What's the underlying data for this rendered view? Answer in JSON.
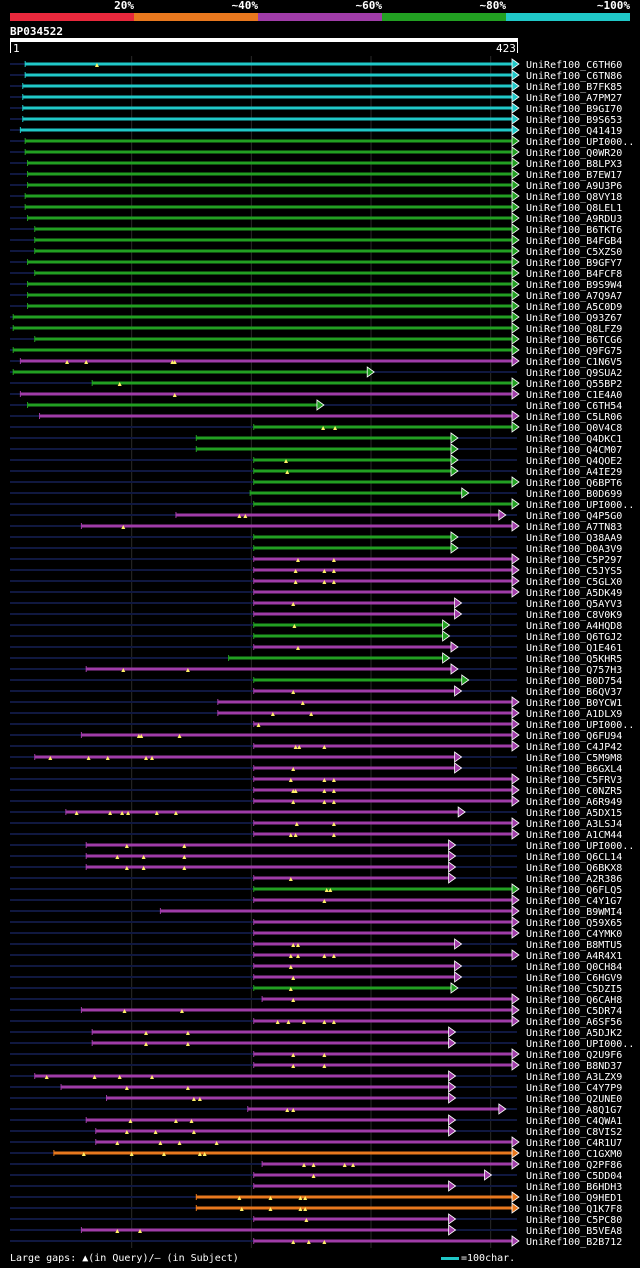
{
  "scale": {
    "labels": [
      "20%",
      "~40%",
      "~60%",
      "~80%",
      "~100%"
    ],
    "colors": [
      "#e8283c",
      "#e8781e",
      "#a03ca8",
      "#22a022",
      "#20c8c8"
    ]
  },
  "query": {
    "id": "BP034522",
    "start_label": "1",
    "end_label": "423",
    "length": 423
  },
  "footer": {
    "large_gaps": "Large gaps: ▲(in Query)/– (in Subject)",
    "legend": "=100char."
  },
  "hits": [
    {
      "name": "UniRef100_C6TH60",
      "color": "#20c8c8",
      "qs": 12,
      "qe": 423,
      "tail": true,
      "marks": [
        72
      ]
    },
    {
      "name": "UniRef100_C6TN86",
      "color": "#20c8c8",
      "qs": 12,
      "qe": 423,
      "tail": true,
      "marks": []
    },
    {
      "name": "UniRef100_B7FK85",
      "color": "#20c8c8",
      "qs": 10,
      "qe": 423,
      "tail": true,
      "marks": []
    },
    {
      "name": "UniRef100_A7PM27",
      "color": "#20c8c8",
      "qs": 10,
      "qe": 423,
      "tail": true,
      "marks": []
    },
    {
      "name": "UniRef100_B9GI70",
      "color": "#20c8c8",
      "qs": 10,
      "qe": 423,
      "tail": true,
      "marks": []
    },
    {
      "name": "UniRef100_B9S653",
      "color": "#20c8c8",
      "qs": 10,
      "qe": 423,
      "tail": true,
      "marks": []
    },
    {
      "name": "UniRef100_Q41419",
      "color": "#20c8c8",
      "qs": 8,
      "qe": 423,
      "tail": true,
      "marks": []
    },
    {
      "name": "UniRef100_UPI000..",
      "color": "#22a022",
      "qs": 12,
      "qe": 423,
      "tail": true,
      "marks": []
    },
    {
      "name": "UniRef100_Q0WR20",
      "color": "#22a022",
      "qs": 12,
      "qe": 423,
      "tail": true,
      "marks": []
    },
    {
      "name": "UniRef100_B8LPX3",
      "color": "#22a022",
      "qs": 14,
      "qe": 423,
      "tail": true,
      "marks": []
    },
    {
      "name": "UniRef100_B7EW17",
      "color": "#22a022",
      "qs": 14,
      "qe": 423,
      "tail": true,
      "marks": []
    },
    {
      "name": "UniRef100_A9U3P6",
      "color": "#22a022",
      "qs": 14,
      "qe": 423,
      "tail": true,
      "marks": []
    },
    {
      "name": "UniRef100_Q8VY18",
      "color": "#22a022",
      "qs": 12,
      "qe": 423,
      "tail": true,
      "marks": []
    },
    {
      "name": "UniRef100_Q8LEL1",
      "color": "#22a022",
      "qs": 12,
      "qe": 423,
      "tail": true,
      "marks": []
    },
    {
      "name": "UniRef100_A9RDU3",
      "color": "#22a022",
      "qs": 14,
      "qe": 423,
      "tail": true,
      "marks": []
    },
    {
      "name": "UniRef100_B6TKT6",
      "color": "#22a022",
      "qs": 20,
      "qe": 423,
      "tail": true,
      "marks": []
    },
    {
      "name": "UniRef100_B4FGB4",
      "color": "#22a022",
      "qs": 20,
      "qe": 423,
      "tail": true,
      "marks": []
    },
    {
      "name": "UniRef100_C5XZS0",
      "color": "#22a022",
      "qs": 20,
      "qe": 423,
      "tail": true,
      "marks": []
    },
    {
      "name": "UniRef100_B9GFY7",
      "color": "#22a022",
      "qs": 14,
      "qe": 423,
      "tail": true,
      "marks": []
    },
    {
      "name": "UniRef100_B4FCF8",
      "color": "#22a022",
      "qs": 20,
      "qe": 423,
      "tail": true,
      "marks": []
    },
    {
      "name": "UniRef100_B9S9W4",
      "color": "#22a022",
      "qs": 14,
      "qe": 423,
      "tail": true,
      "marks": []
    },
    {
      "name": "UniRef100_A7Q9A7",
      "color": "#22a022",
      "qs": 14,
      "qe": 423,
      "tail": true,
      "marks": []
    },
    {
      "name": "UniRef100_A5C0D9",
      "color": "#22a022",
      "qs": 14,
      "qe": 423,
      "tail": true,
      "marks": []
    },
    {
      "name": "UniRef100_Q93Z67",
      "color": "#22a022",
      "qs": 2,
      "qe": 423,
      "tail": true,
      "marks": []
    },
    {
      "name": "UniRef100_Q8LFZ9",
      "color": "#22a022",
      "qs": 2,
      "qe": 423,
      "tail": true,
      "marks": []
    },
    {
      "name": "UniRef100_B6TCG6",
      "color": "#22a022",
      "qs": 20,
      "qe": 423,
      "tail": true,
      "marks": []
    },
    {
      "name": "UniRef100_Q9FG75",
      "color": "#22a022",
      "qs": 2,
      "qe": 423,
      "tail": true,
      "marks": []
    },
    {
      "name": "UniRef100_C1N6V5",
      "color": "#a03ca8",
      "qs": 8,
      "qe": 423,
      "tail": true,
      "marks": [
        47,
        63,
        135,
        137
      ]
    },
    {
      "name": "UniRef100_Q9SUA2",
      "color": "#22a022",
      "qs": 2,
      "qe": 302,
      "tail": false,
      "marks": []
    },
    {
      "name": "UniRef100_Q55BP2",
      "color": "#22a022",
      "qs": 68,
      "qe": 423,
      "tail": true,
      "marks": [
        91
      ]
    },
    {
      "name": "UniRef100_C1E4A0",
      "color": "#a03ca8",
      "qs": 8,
      "qe": 423,
      "tail": true,
      "marks": [
        137
      ]
    },
    {
      "name": "UniRef100_C6TH54",
      "color": "#22a022",
      "qs": 14,
      "qe": 260,
      "tail": false,
      "marks": []
    },
    {
      "name": "UniRef100_C5LR06",
      "color": "#a03ca8",
      "qs": 24,
      "qe": 423,
      "tail": true,
      "marks": []
    },
    {
      "name": "UniRef100_Q0V4C8",
      "color": "#22a022",
      "qs": 203,
      "qe": 423,
      "tail": true,
      "marks": [
        261,
        271
      ]
    },
    {
      "name": "UniRef100_Q4DKC1",
      "color": "#22a022",
      "qs": 155,
      "qe": 372,
      "tail": false,
      "marks": []
    },
    {
      "name": "UniRef100_Q4CM07",
      "color": "#22a022",
      "qs": 155,
      "qe": 372,
      "tail": false,
      "marks": []
    },
    {
      "name": "UniRef100_Q4QOE2",
      "color": "#22a022",
      "qs": 203,
      "qe": 372,
      "tail": false,
      "marks": [
        230
      ]
    },
    {
      "name": "UniRef100_A4IE29",
      "color": "#22a022",
      "qs": 203,
      "qe": 372,
      "tail": false,
      "marks": [
        231
      ]
    },
    {
      "name": "UniRef100_Q6BPT6",
      "color": "#22a022",
      "qs": 203,
      "qe": 423,
      "tail": true,
      "marks": []
    },
    {
      "name": "UniRef100_B0D699",
      "color": "#22a022",
      "qs": 200,
      "qe": 381,
      "tail": false,
      "marks": []
    },
    {
      "name": "UniRef100_UPI000..",
      "color": "#22a022",
      "qs": 203,
      "qe": 423,
      "tail": true,
      "marks": []
    },
    {
      "name": "UniRef100_Q4P5G0",
      "color": "#a03ca8",
      "qs": 138,
      "qe": 412,
      "tail": false,
      "marks": [
        191,
        196
      ]
    },
    {
      "name": "UniRef100_A7TN83",
      "color": "#a03ca8",
      "qs": 59,
      "qe": 423,
      "tail": true,
      "marks": [
        94
      ]
    },
    {
      "name": "UniRef100_Q38AA9",
      "color": "#22a022",
      "qs": 203,
      "qe": 372,
      "tail": false,
      "marks": []
    },
    {
      "name": "UniRef100_D0A3V9",
      "color": "#22a022",
      "qs": 203,
      "qe": 372,
      "tail": false,
      "marks": []
    },
    {
      "name": "UniRef100_C5P297",
      "color": "#a03ca8",
      "qs": 203,
      "qe": 423,
      "tail": true,
      "marks": [
        240,
        270
      ]
    },
    {
      "name": "UniRef100_C5JYS5",
      "color": "#a03ca8",
      "qs": 203,
      "qe": 423,
      "tail": true,
      "marks": [
        238,
        262,
        270
      ]
    },
    {
      "name": "UniRef100_C5GLX0",
      "color": "#a03ca8",
      "qs": 203,
      "qe": 423,
      "tail": true,
      "marks": [
        238,
        262,
        270
      ]
    },
    {
      "name": "UniRef100_A5DK49",
      "color": "#a03ca8",
      "qs": 203,
      "qe": 423,
      "tail": true,
      "marks": []
    },
    {
      "name": "UniRef100_Q5AYV3",
      "color": "#a03ca8",
      "qs": 203,
      "qe": 375,
      "tail": false,
      "marks": [
        236
      ]
    },
    {
      "name": "UniRef100_C8V0K9",
      "color": "#a03ca8",
      "qs": 203,
      "qe": 375,
      "tail": false,
      "marks": []
    },
    {
      "name": "UniRef100_A4HQD8",
      "color": "#22a022",
      "qs": 203,
      "qe": 365,
      "tail": false,
      "marks": [
        237
      ]
    },
    {
      "name": "UniRef100_Q6TGJ2",
      "color": "#22a022",
      "qs": 203,
      "qe": 365,
      "tail": false,
      "marks": []
    },
    {
      "name": "UniRef100_Q1E461",
      "color": "#a03ca8",
      "qs": 203,
      "qe": 372,
      "tail": false,
      "marks": [
        240
      ]
    },
    {
      "name": "UniRef100_Q5KHR5",
      "color": "#22a022",
      "qs": 182,
      "qe": 365,
      "tail": false,
      "marks": []
    },
    {
      "name": "UniRef100_Q757H3",
      "color": "#a03ca8",
      "qs": 63,
      "qe": 372,
      "tail": false,
      "marks": [
        94,
        148
      ]
    },
    {
      "name": "UniRef100_B0D754",
      "color": "#22a022",
      "qs": 203,
      "qe": 381,
      "tail": false,
      "marks": []
    },
    {
      "name": "UniRef100_B6QV37",
      "color": "#a03ca8",
      "qs": 203,
      "qe": 375,
      "tail": false,
      "marks": [
        236
      ]
    },
    {
      "name": "UniRef100_B0YCW1",
      "color": "#a03ca8",
      "qs": 173,
      "qe": 423,
      "tail": true,
      "marks": [
        244
      ]
    },
    {
      "name": "UniRef100_A1DLX9",
      "color": "#a03ca8",
      "qs": 173,
      "qe": 423,
      "tail": true,
      "marks": [
        219,
        251
      ]
    },
    {
      "name": "UniRef100_UPI000..",
      "color": "#a03ca8",
      "qs": 203,
      "qe": 423,
      "tail": true,
      "marks": [
        207
      ]
    },
    {
      "name": "UniRef100_Q6FU94",
      "color": "#a03ca8",
      "qs": 59,
      "qe": 423,
      "tail": true,
      "marks": [
        107,
        109,
        141
      ]
    },
    {
      "name": "UniRef100_C4JP42",
      "color": "#a03ca8",
      "qs": 203,
      "qe": 423,
      "tail": true,
      "marks": [
        238,
        241,
        262
      ]
    },
    {
      "name": "UniRef100_C5M9M8",
      "color": "#a03ca8",
      "qs": 20,
      "qe": 375,
      "tail": false,
      "marks": [
        33,
        65,
        81,
        113,
        118
      ]
    },
    {
      "name": "UniRef100_B6GXL4",
      "color": "#a03ca8",
      "qs": 203,
      "qe": 375,
      "tail": false,
      "marks": [
        236
      ]
    },
    {
      "name": "UniRef100_C5FRV3",
      "color": "#a03ca8",
      "qs": 203,
      "qe": 423,
      "tail": true,
      "marks": [
        234,
        262,
        270
      ]
    },
    {
      "name": "UniRef100_C0NZR5",
      "color": "#a03ca8",
      "qs": 203,
      "qe": 423,
      "tail": true,
      "marks": [
        236,
        238,
        262,
        270
      ]
    },
    {
      "name": "UniRef100_A6R949",
      "color": "#a03ca8",
      "qs": 203,
      "qe": 423,
      "tail": true,
      "marks": [
        236,
        262,
        270
      ]
    },
    {
      "name": "UniRef100_A5DX15",
      "color": "#a03ca8",
      "qs": 46,
      "qe": 378,
      "tail": false,
      "marks": [
        55,
        83,
        93,
        98,
        122,
        138
      ]
    },
    {
      "name": "UniRef100_A3LSJ4",
      "color": "#a03ca8",
      "qs": 203,
      "qe": 423,
      "tail": true,
      "marks": [
        239,
        270
      ]
    },
    {
      "name": "UniRef100_A1CM44",
      "color": "#a03ca8",
      "qs": 203,
      "qe": 423,
      "tail": true,
      "marks": [
        234,
        238,
        270
      ]
    },
    {
      "name": "UniRef100_UPI000..",
      "color": "#a03ca8",
      "qs": 63,
      "qe": 370,
      "tail": false,
      "marks": [
        97,
        145
      ]
    },
    {
      "name": "UniRef100_Q6CL14",
      "color": "#a03ca8",
      "qs": 63,
      "qe": 370,
      "tail": false,
      "marks": [
        89,
        111,
        145
      ]
    },
    {
      "name": "UniRef100_Q6BKX8",
      "color": "#a03ca8",
      "qs": 63,
      "qe": 370,
      "tail": false,
      "marks": [
        97,
        111,
        145
      ]
    },
    {
      "name": "UniRef100_A2R386",
      "color": "#a03ca8",
      "qs": 203,
      "qe": 370,
      "tail": false,
      "marks": [
        234
      ]
    },
    {
      "name": "UniRef100_Q6FLQ5",
      "color": "#22a022",
      "qs": 203,
      "qe": 423,
      "tail": true,
      "marks": [
        264,
        267
      ]
    },
    {
      "name": "UniRef100_C4Y1G7",
      "color": "#a03ca8",
      "qs": 203,
      "qe": 423,
      "tail": true,
      "marks": [
        262
      ]
    },
    {
      "name": "UniRef100_B9WMI4",
      "color": "#a03ca8",
      "qs": 125,
      "qe": 423,
      "tail": true,
      "marks": []
    },
    {
      "name": "UniRef100_Q59X65",
      "color": "#a03ca8",
      "qs": 203,
      "qe": 423,
      "tail": true,
      "marks": []
    },
    {
      "name": "UniRef100_C4YMK0",
      "color": "#a03ca8",
      "qs": 203,
      "qe": 423,
      "tail": true,
      "marks": []
    },
    {
      "name": "UniRef100_B8MTU5",
      "color": "#a03ca8",
      "qs": 203,
      "qe": 375,
      "tail": false,
      "marks": [
        236,
        240
      ]
    },
    {
      "name": "UniRef100_A4R4X1",
      "color": "#a03ca8",
      "qs": 203,
      "qe": 423,
      "tail": true,
      "marks": [
        234,
        240,
        262,
        270
      ]
    },
    {
      "name": "UniRef100_Q0CH84",
      "color": "#a03ca8",
      "qs": 203,
      "qe": 375,
      "tail": false,
      "marks": [
        234
      ]
    },
    {
      "name": "UniRef100_C6HGV9",
      "color": "#a03ca8",
      "qs": 203,
      "qe": 375,
      "tail": false,
      "marks": [
        236
      ]
    },
    {
      "name": "UniRef100_C5DZI5",
      "color": "#22a022",
      "qs": 203,
      "qe": 372,
      "tail": false,
      "marks": [
        234
      ]
    },
    {
      "name": "UniRef100_Q6CAH8",
      "color": "#a03ca8",
      "qs": 210,
      "qe": 423,
      "tail": true,
      "marks": [
        236
      ]
    },
    {
      "name": "UniRef100_C5DR74",
      "color": "#a03ca8",
      "qs": 59,
      "qe": 423,
      "tail": true,
      "marks": [
        95,
        143
      ]
    },
    {
      "name": "UniRef100_A6SF56",
      "color": "#a03ca8",
      "qs": 203,
      "qe": 423,
      "tail": true,
      "marks": [
        223,
        232,
        245,
        262,
        270
      ]
    },
    {
      "name": "UniRef100_A5DJK2",
      "color": "#a03ca8",
      "qs": 68,
      "qe": 370,
      "tail": false,
      "marks": [
        113,
        148
      ]
    },
    {
      "name": "UniRef100_UPI000..",
      "color": "#a03ca8",
      "qs": 68,
      "qe": 370,
      "tail": false,
      "marks": [
        113,
        148
      ]
    },
    {
      "name": "UniRef100_Q2U9F6",
      "color": "#a03ca8",
      "qs": 203,
      "qe": 423,
      "tail": true,
      "marks": [
        236,
        262
      ]
    },
    {
      "name": "UniRef100_B8ND37",
      "color": "#a03ca8",
      "qs": 203,
      "qe": 423,
      "tail": true,
      "marks": [
        236,
        262
      ]
    },
    {
      "name": "UniRef100_A3LZX9",
      "color": "#a03ca8",
      "qs": 20,
      "qe": 370,
      "tail": false,
      "marks": [
        30,
        70,
        91,
        118
      ]
    },
    {
      "name": "UniRef100_C4Y7P9",
      "color": "#a03ca8",
      "qs": 42,
      "qe": 370,
      "tail": false,
      "marks": [
        97,
        148
      ]
    },
    {
      "name": "UniRef100_Q2UNE0",
      "color": "#a03ca8",
      "qs": 80,
      "qe": 370,
      "tail": false,
      "marks": [
        153,
        158
      ]
    },
    {
      "name": "UniRef100_A8Q1G7",
      "color": "#a03ca8",
      "qs": 198,
      "qe": 412,
      "tail": false,
      "marks": [
        231,
        236
      ]
    },
    {
      "name": "UniRef100_C4QWA1",
      "color": "#a03ca8",
      "qs": 63,
      "qe": 370,
      "tail": false,
      "marks": [
        100,
        138,
        151
      ]
    },
    {
      "name": "UniRef100_C8VIS2",
      "color": "#a03ca8",
      "qs": 71,
      "qe": 370,
      "tail": false,
      "marks": [
        97,
        121,
        153
      ]
    },
    {
      "name": "UniRef100_C4R1U7",
      "color": "#a03ca8",
      "qs": 71,
      "qe": 423,
      "tail": true,
      "marks": [
        89,
        125,
        141,
        172
      ]
    },
    {
      "name": "UniRef100_C1GXM0",
      "color": "#e8781e",
      "qs": 36,
      "qe": 423,
      "tail": true,
      "marks": [
        61,
        101,
        128,
        158,
        162
      ]
    },
    {
      "name": "UniRef100_Q2PF86",
      "color": "#a03ca8",
      "qs": 210,
      "qe": 423,
      "tail": true,
      "marks": [
        245,
        253,
        279,
        286
      ]
    },
    {
      "name": "UniRef100_C5DD04",
      "color": "#a03ca8",
      "qs": 203,
      "qe": 400,
      "tail": false,
      "marks": [
        253
      ]
    },
    {
      "name": "UniRef100_B6HDH3",
      "color": "#a03ca8",
      "qs": 203,
      "qe": 370,
      "tail": false,
      "marks": []
    },
    {
      "name": "UniRef100_Q9HED1",
      "color": "#e8781e",
      "qs": 155,
      "qe": 423,
      "tail": true,
      "marks": [
        191,
        217,
        242,
        246
      ]
    },
    {
      "name": "UniRef100_Q1K7F8",
      "color": "#e8781e",
      "qs": 155,
      "qe": 423,
      "tail": true,
      "marks": [
        193,
        217,
        242,
        246
      ]
    },
    {
      "name": "UniRef100_C5PC80",
      "color": "#a03ca8",
      "qs": 203,
      "qe": 370,
      "tail": false,
      "marks": [
        247
      ]
    },
    {
      "name": "UniRef100_B5VEA8",
      "color": "#a03ca8",
      "qs": 59,
      "qe": 370,
      "tail": false,
      "marks": [
        89,
        108
      ]
    },
    {
      "name": "UniRef100_B2B712",
      "color": "#a03ca8",
      "qs": 203,
      "qe": 423,
      "tail": true,
      "marks": [
        236,
        249,
        262
      ]
    }
  ]
}
